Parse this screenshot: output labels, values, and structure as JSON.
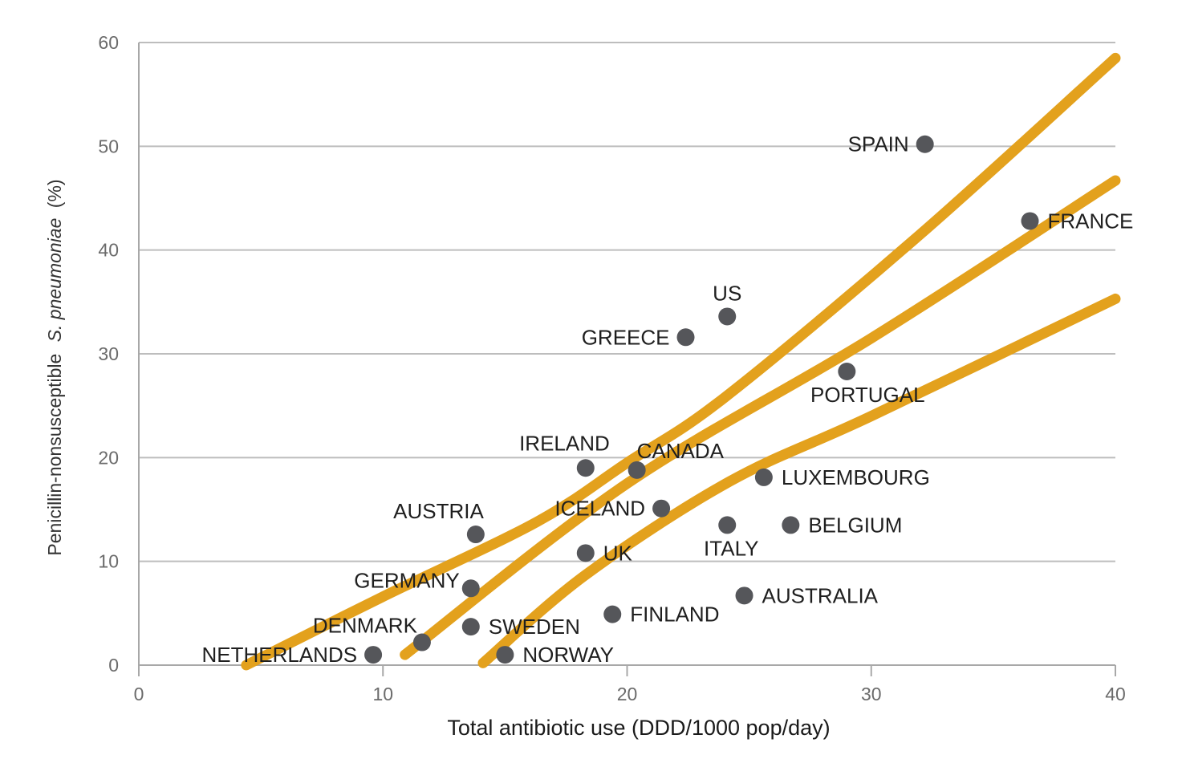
{
  "chart_data": {
    "type": "scatter",
    "title": "",
    "xlabel": "Total antibiotic use (DDD/1000 pop/day)",
    "ylabel_prefix": "Penicillin-nonsusceptible",
    "ylabel_italic": "S. pneumoniae",
    "ylabel_suffix": "(%)",
    "xlim": [
      0,
      40
    ],
    "ylim": [
      0,
      60
    ],
    "x_ticks": [
      0,
      10,
      20,
      30,
      40
    ],
    "y_ticks": [
      0,
      10,
      20,
      30,
      40,
      50,
      60
    ],
    "grid": "horizontal",
    "legend": "none",
    "colors": {
      "points": "#55565a",
      "trend_lines": "#e3a11d",
      "grid": "#bdbdbd"
    },
    "points": [
      {
        "label": "NETHERLANDS",
        "x": 9.6,
        "y": 1.0,
        "label_pos": "left"
      },
      {
        "label": "DENMARK",
        "x": 11.6,
        "y": 2.2,
        "label_pos": "above-left"
      },
      {
        "label": "SWEDEN",
        "x": 13.6,
        "y": 3.7,
        "label_pos": "right"
      },
      {
        "label": "GERMANY",
        "x": 13.6,
        "y": 7.4,
        "label_pos": "above-left"
      },
      {
        "label": "AUSTRIA",
        "x": 13.8,
        "y": 12.6,
        "label_pos": "above-left"
      },
      {
        "label": "NORWAY",
        "x": 15.0,
        "y": 1.0,
        "label_pos": "right"
      },
      {
        "label": "UK",
        "x": 18.3,
        "y": 10.8,
        "label_pos": "right"
      },
      {
        "label": "FINLAND",
        "x": 19.4,
        "y": 4.9,
        "label_pos": "right"
      },
      {
        "label": "IRELAND",
        "x": 18.3,
        "y": 19.0,
        "label_pos": "above-left"
      },
      {
        "label": "CANADA",
        "x": 20.4,
        "y": 18.8,
        "label_pos": "above-right"
      },
      {
        "label": "ICELAND",
        "x": 21.4,
        "y": 15.1,
        "label_pos": "left"
      },
      {
        "label": "GREECE",
        "x": 22.4,
        "y": 31.6,
        "label_pos": "left"
      },
      {
        "label": "US",
        "x": 24.1,
        "y": 33.6,
        "label_pos": "above"
      },
      {
        "label": "ITALY",
        "x": 24.1,
        "y": 13.5,
        "label_pos": "below"
      },
      {
        "label": "AUSTRALIA",
        "x": 24.8,
        "y": 6.7,
        "label_pos": "right"
      },
      {
        "label": "LUXEMBOURG",
        "x": 25.6,
        "y": 18.1,
        "label_pos": "right"
      },
      {
        "label": "BELGIUM",
        "x": 26.7,
        "y": 13.5,
        "label_pos": "right"
      },
      {
        "label": "PORTUGAL",
        "x": 29.0,
        "y": 28.3,
        "label_pos": "below"
      },
      {
        "label": "SPAIN",
        "x": 32.2,
        "y": 50.2,
        "label_pos": "left"
      },
      {
        "label": "FRANCE",
        "x": 36.5,
        "y": 42.8,
        "label_pos": "right"
      }
    ],
    "trend_lines": [
      {
        "name": "upper",
        "points": [
          [
            4.4,
            0.0
          ],
          [
            10.0,
            6.6
          ],
          [
            16.3,
            13.8
          ],
          [
            20.0,
            19.5
          ],
          [
            24.0,
            25.8
          ],
          [
            32.0,
            41.5
          ],
          [
            40.0,
            58.5
          ]
        ]
      },
      {
        "name": "middle",
        "points": [
          [
            10.9,
            1.0
          ],
          [
            20.0,
            17.5
          ],
          [
            30.0,
            31.5
          ],
          [
            40.0,
            46.7
          ]
        ]
      },
      {
        "name": "lower",
        "points": [
          [
            14.1,
            0.2
          ],
          [
            18.3,
            8.7
          ],
          [
            24.2,
            17.7
          ],
          [
            30.0,
            24.0
          ],
          [
            40.0,
            35.3
          ]
        ]
      }
    ]
  }
}
